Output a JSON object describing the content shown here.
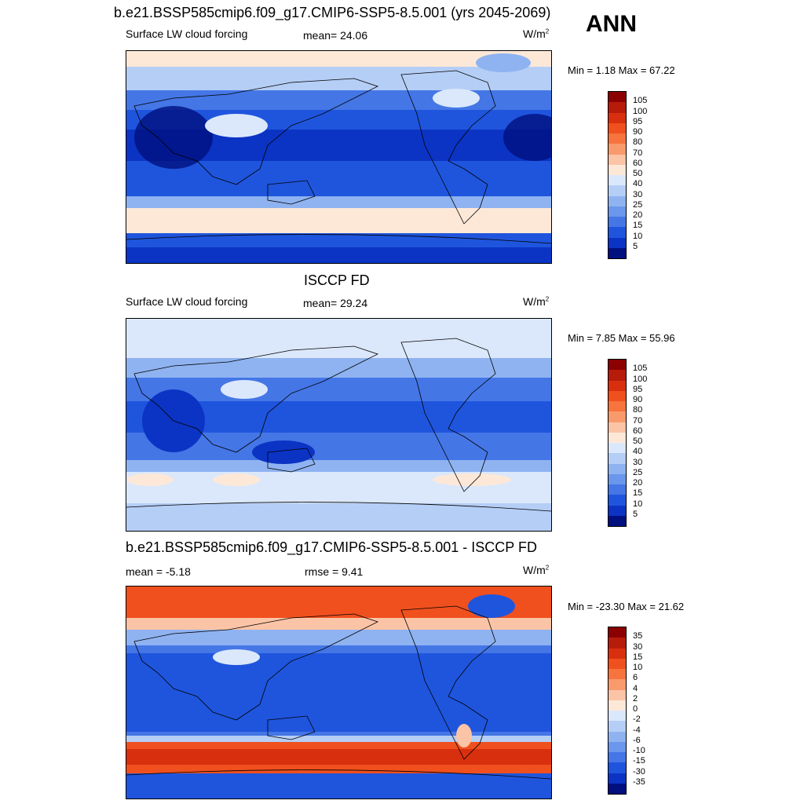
{
  "season": "ANN",
  "panels": [
    {
      "title": "b.e21.BSSP585cmip6.f09_g17.CMIP6-SSP5-8.5.001 (yrs 2045-2069)",
      "left_label": "Surface LW cloud forcing",
      "mid_label": "mean=  24.06",
      "units": "W/m",
      "units_sup": "2",
      "minmax": "Min =   1.18 Max =  67.22",
      "colorbar_ticks": [
        "105",
        "100",
        "95",
        "90",
        "80",
        "70",
        "60",
        "50",
        "40",
        "30",
        "25",
        "20",
        "15",
        "10",
        "5"
      ],
      "colorbar_colors": [
        "#8b0000",
        "#b71c0a",
        "#d8300f",
        "#f0501e",
        "#f7743e",
        "#f99a6c",
        "#fcc4a6",
        "#fde8d8",
        "#dbe8fb",
        "#b5cef6",
        "#8fb3f1",
        "#6a97ec",
        "#4476e6",
        "#1f55dd",
        "#0b34c4",
        "#00107f"
      ]
    },
    {
      "title": "ISCCP FD",
      "left_label": "Surface LW cloud forcing",
      "mid_label": "mean=  29.24",
      "units": "W/m",
      "units_sup": "2",
      "minmax": "Min =   7.85 Max =  55.96",
      "colorbar_ticks": [
        "105",
        "100",
        "95",
        "90",
        "80",
        "70",
        "60",
        "50",
        "40",
        "30",
        "25",
        "20",
        "15",
        "10",
        "5"
      ],
      "colorbar_colors": [
        "#8b0000",
        "#b71c0a",
        "#d8300f",
        "#f0501e",
        "#f7743e",
        "#f99a6c",
        "#fcc4a6",
        "#fde8d8",
        "#dbe8fb",
        "#b5cef6",
        "#8fb3f1",
        "#6a97ec",
        "#4476e6",
        "#1f55dd",
        "#0b34c4",
        "#00107f"
      ]
    },
    {
      "title": "b.e21.BSSP585cmip6.f09_g17.CMIP6-SSP5-8.5.001 - ISCCP FD",
      "left_label": "mean =  -5.18",
      "mid_label": "rmse =   9.41",
      "units": "W/m",
      "units_sup": "2",
      "minmax": "Min = -23.30 Max =  21.62",
      "colorbar_ticks": [
        "35",
        "30",
        "15",
        "10",
        "6",
        "4",
        "2",
        "0",
        "-2",
        "-4",
        "-6",
        "-10",
        "-15",
        "-30",
        "-35"
      ],
      "colorbar_colors": [
        "#8b0000",
        "#b71c0a",
        "#d8300f",
        "#f0501e",
        "#f7743e",
        "#f99a6c",
        "#fcc4a6",
        "#fde8d8",
        "#dbe8fb",
        "#b5cef6",
        "#8fb3f1",
        "#6a97ec",
        "#4476e6",
        "#1f55dd",
        "#0b34c4",
        "#00107f"
      ]
    }
  ],
  "chart_data": [
    {
      "type": "heatmap",
      "title": "b.e21.BSSP585cmip6.f09_g17.CMIP6-SSP5-8.5.001 (yrs 2045-2069)",
      "variable": "Surface LW cloud forcing",
      "units": "W/m2",
      "mean": 24.06,
      "min": 1.18,
      "max": 67.22,
      "colorbar_levels": [
        5,
        10,
        15,
        20,
        25,
        30,
        40,
        50,
        60,
        70,
        80,
        90,
        95,
        100,
        105
      ]
    },
    {
      "type": "heatmap",
      "title": "ISCCP FD",
      "variable": "Surface LW cloud forcing",
      "units": "W/m2",
      "mean": 29.24,
      "min": 7.85,
      "max": 55.96,
      "colorbar_levels": [
        5,
        10,
        15,
        20,
        25,
        30,
        40,
        50,
        60,
        70,
        80,
        90,
        95,
        100,
        105
      ]
    },
    {
      "type": "heatmap",
      "title": "b.e21.BSSP585cmip6.f09_g17.CMIP6-SSP5-8.5.001 - ISCCP FD",
      "units": "W/m2",
      "mean": -5.18,
      "rmse": 9.41,
      "min": -23.3,
      "max": 21.62,
      "colorbar_levels": [
        -35,
        -30,
        -15,
        -10,
        -6,
        -4,
        -2,
        0,
        2,
        4,
        6,
        10,
        15,
        30,
        35
      ]
    }
  ]
}
